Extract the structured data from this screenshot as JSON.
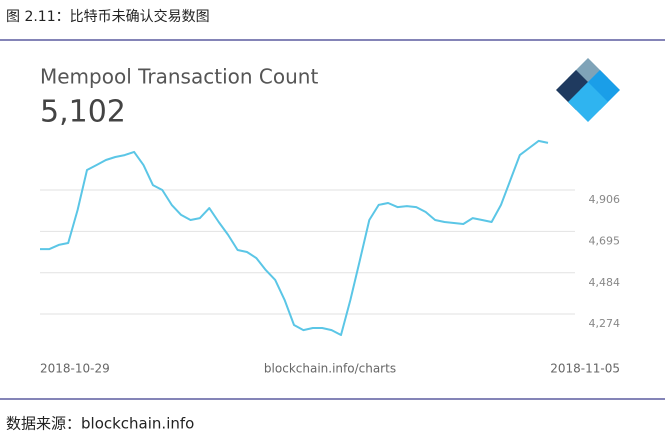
{
  "caption": "图 2.11：比特币未确认交易数图",
  "source": "数据来源：blockchain.info",
  "chart_data": {
    "type": "line",
    "title": "Mempool Transaction Count",
    "headline": "5,102",
    "x_start_label": "2018-10-29",
    "x_end_label": "2018-11-05",
    "x_center_label": "blockchain.info/charts",
    "color": "#5bc6e6",
    "ylim": [
      4110,
      5170
    ],
    "yticks": [
      {
        "value": 4906,
        "label": "4,906"
      },
      {
        "value": 4695,
        "label": "4,695"
      },
      {
        "value": 4484,
        "label": "4,484"
      },
      {
        "value": 4274,
        "label": "4,274"
      }
    ],
    "grid": true,
    "values": [
      4605,
      4605,
      4626,
      4636,
      4804,
      5008,
      5033,
      5059,
      5074,
      5084,
      5100,
      5033,
      4931,
      4906,
      4830,
      4779,
      4753,
      4763,
      4814,
      4743,
      4677,
      4600,
      4590,
      4559,
      4498,
      4448,
      4346,
      4218,
      4192,
      4203,
      4203,
      4192,
      4167,
      4346,
      4549,
      4753,
      4830,
      4840,
      4819,
      4824,
      4819,
      4794,
      4753,
      4743,
      4738,
      4733,
      4763,
      4753,
      4743,
      4830,
      4957,
      5084,
      5120,
      5156,
      5146
    ]
  }
}
